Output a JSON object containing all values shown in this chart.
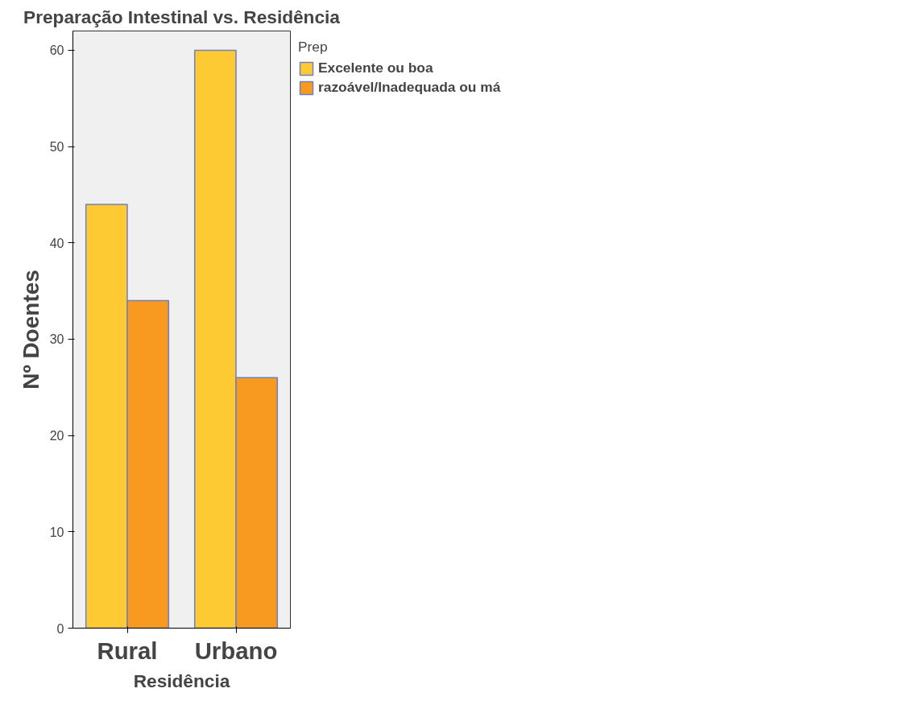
{
  "chart_data": {
    "type": "bar",
    "title": "Preparação Intestinal vs. Residência",
    "xlabel": "Residência",
    "ylabel": "Nº Doentes",
    "legend_title": "Prep",
    "categories": [
      "Rural",
      "Urbano"
    ],
    "series": [
      {
        "name": "Excelente ou boa",
        "color": "#fdca33",
        "values": [
          44,
          60
        ]
      },
      {
        "name": "razoável/Inadequada ou má",
        "color": "#f89a1f",
        "values": [
          34,
          26
        ]
      }
    ],
    "ylim": [
      0,
      62
    ],
    "yticks": [
      0,
      10,
      20,
      30,
      40,
      50,
      60
    ],
    "grid": false,
    "legend": "top right"
  }
}
